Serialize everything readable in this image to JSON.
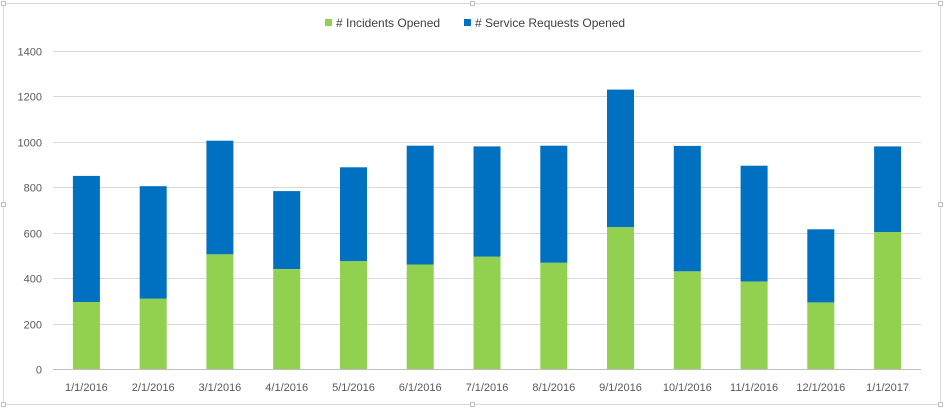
{
  "chart_data": {
    "type": "bar",
    "stacked": true,
    "categories": [
      "1/1/2016",
      "2/1/2016",
      "3/1/2016",
      "4/1/2016",
      "5/1/2016",
      "6/1/2016",
      "7/1/2016",
      "8/1/2016",
      "9/1/2016",
      "10/1/2016",
      "11/1/2016",
      "12/1/2016",
      "1/1/2017"
    ],
    "series": [
      {
        "name": "# Incidents Opened",
        "color": "#92d050",
        "values": [
          295,
          310,
          505,
          440,
          475,
          460,
          495,
          468,
          625,
          430,
          385,
          293,
          603
        ]
      },
      {
        "name": "# Service Requests Opened",
        "color": "#0070c0",
        "values": [
          555,
          495,
          500,
          343,
          413,
          523,
          485,
          515,
          605,
          552,
          510,
          322,
          377
        ]
      }
    ],
    "title": "",
    "xlabel": "",
    "ylabel": "",
    "ylim": [
      0,
      1400
    ],
    "yticks": [
      0,
      200,
      400,
      600,
      800,
      1000,
      1200,
      1400
    ],
    "grid": true,
    "legend_position": "top"
  }
}
